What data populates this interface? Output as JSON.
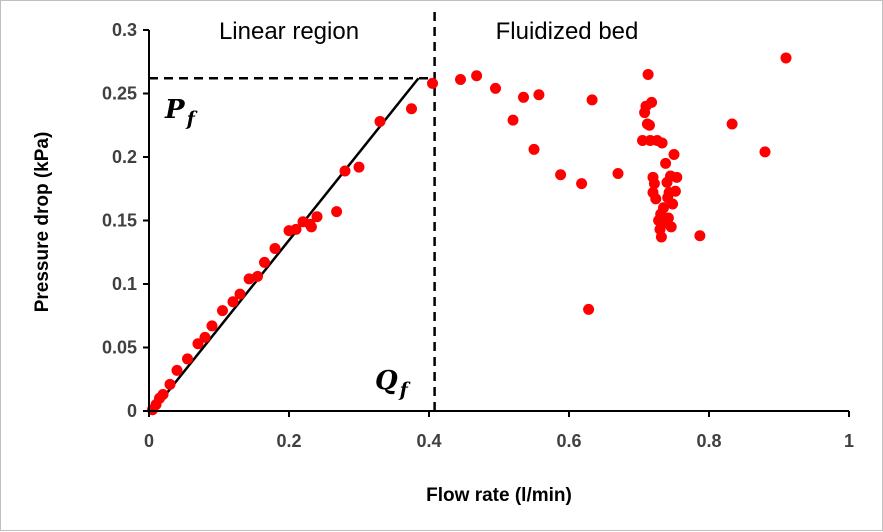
{
  "chart_data": {
    "type": "scatter",
    "xlabel": "Flow rate (l/min)",
    "ylabel": "Pressure drop (kPa)",
    "xlim": [
      0,
      1
    ],
    "ylim": [
      0,
      0.3
    ],
    "x_ticks": [
      "0",
      "0.2",
      "0.4",
      "0.6",
      "0.8",
      "1"
    ],
    "y_ticks": [
      "0",
      "0.05",
      "0.1",
      "0.15",
      "0.2",
      "0.25",
      "0.3"
    ],
    "grid": false,
    "region_labels": {
      "left": "Linear region",
      "right": "Fluidized bed"
    },
    "annotations": {
      "pf": {
        "base": "P",
        "sub": "f"
      },
      "qf": {
        "base": "Q",
        "sub": "f"
      }
    },
    "colors": {
      "points": "#ff0000",
      "fit_line": "#000000",
      "guides": "#000000"
    },
    "fit_line": {
      "x": [
        0.005,
        0.385
      ],
      "y": [
        0.0,
        0.262
      ]
    },
    "threshold": {
      "qf": 0.408,
      "pf": 0.262
    },
    "series": [
      {
        "points": [
          [
            0.005,
            0.001
          ],
          [
            0.01,
            0.005
          ],
          [
            0.015,
            0.01
          ],
          [
            0.02,
            0.013
          ],
          [
            0.03,
            0.021
          ],
          [
            0.04,
            0.032
          ],
          [
            0.055,
            0.041
          ],
          [
            0.07,
            0.053
          ],
          [
            0.08,
            0.058
          ],
          [
            0.09,
            0.067
          ],
          [
            0.105,
            0.079
          ],
          [
            0.12,
            0.086
          ],
          [
            0.13,
            0.092
          ],
          [
            0.143,
            0.104
          ],
          [
            0.155,
            0.106
          ],
          [
            0.165,
            0.117
          ],
          [
            0.18,
            0.128
          ],
          [
            0.2,
            0.142
          ],
          [
            0.21,
            0.143
          ],
          [
            0.22,
            0.149
          ],
          [
            0.23,
            0.147
          ],
          [
            0.232,
            0.145
          ],
          [
            0.24,
            0.153
          ],
          [
            0.268,
            0.157
          ],
          [
            0.28,
            0.189
          ],
          [
            0.3,
            0.192
          ],
          [
            0.33,
            0.228
          ],
          [
            0.375,
            0.238
          ],
          [
            0.405,
            0.258
          ],
          [
            0.445,
            0.261
          ],
          [
            0.468,
            0.264
          ],
          [
            0.495,
            0.254
          ],
          [
            0.52,
            0.229
          ],
          [
            0.535,
            0.247
          ],
          [
            0.55,
            0.206
          ],
          [
            0.557,
            0.249
          ],
          [
            0.588,
            0.186
          ],
          [
            0.618,
            0.179
          ],
          [
            0.628,
            0.08
          ],
          [
            0.633,
            0.245
          ],
          [
            0.67,
            0.187
          ],
          [
            0.705,
            0.213
          ],
          [
            0.708,
            0.235
          ],
          [
            0.71,
            0.24
          ],
          [
            0.712,
            0.226
          ],
          [
            0.713,
            0.265
          ],
          [
            0.715,
            0.225
          ],
          [
            0.716,
            0.213
          ],
          [
            0.718,
            0.243
          ],
          [
            0.72,
            0.184
          ],
          [
            0.72,
            0.172
          ],
          [
            0.722,
            0.179
          ],
          [
            0.724,
            0.167
          ],
          [
            0.726,
            0.213
          ],
          [
            0.728,
            0.15
          ],
          [
            0.73,
            0.143
          ],
          [
            0.731,
            0.155
          ],
          [
            0.732,
            0.137
          ],
          [
            0.733,
            0.211
          ],
          [
            0.735,
            0.16
          ],
          [
            0.736,
            0.148
          ],
          [
            0.738,
            0.195
          ],
          [
            0.74,
            0.18
          ],
          [
            0.741,
            0.168
          ],
          [
            0.742,
            0.152
          ],
          [
            0.743,
            0.172
          ],
          [
            0.745,
            0.185
          ],
          [
            0.746,
            0.145
          ],
          [
            0.748,
            0.163
          ],
          [
            0.75,
            0.202
          ],
          [
            0.752,
            0.173
          ],
          [
            0.754,
            0.184
          ],
          [
            0.787,
            0.138
          ],
          [
            0.833,
            0.226
          ],
          [
            0.88,
            0.204
          ],
          [
            0.91,
            0.278
          ]
        ]
      }
    ]
  }
}
